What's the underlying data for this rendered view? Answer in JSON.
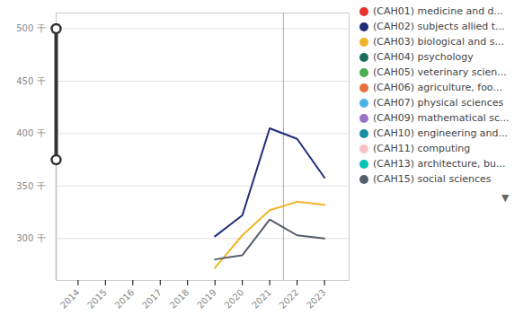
{
  "chart_data": {
    "type": "line",
    "title": "",
    "x": [
      2014,
      2015,
      2016,
      2017,
      2018,
      2019,
      2020,
      2021,
      2022,
      2023
    ],
    "series": [
      {
        "name": "(CAH01) medicine and d...",
        "color": "#e8312a",
        "values": [
          null,
          null,
          null,
          null,
          null,
          null,
          null,
          null,
          null,
          null
        ]
      },
      {
        "name": "(CAH02) subjects allied t...",
        "color": "#1f2d7b",
        "values": [
          null,
          null,
          null,
          null,
          null,
          302,
          322,
          405,
          395,
          358
        ]
      },
      {
        "name": "(CAH03) biological and s...",
        "color": "#f0b429",
        "values": [
          null,
          null,
          null,
          null,
          null,
          272,
          303,
          327,
          335,
          332
        ]
      },
      {
        "name": "(CAH04) psychology",
        "color": "#1a6e5c",
        "values": [
          null,
          null,
          null,
          null,
          null,
          null,
          null,
          null,
          null,
          null
        ]
      },
      {
        "name": "(CAH05) veterinary scien...",
        "color": "#4caf50",
        "values": [
          null,
          null,
          null,
          null,
          null,
          null,
          null,
          null,
          null,
          null
        ]
      },
      {
        "name": "(CAH06) agriculture, foo...",
        "color": "#e87040",
        "values": [
          null,
          null,
          null,
          null,
          null,
          null,
          null,
          null,
          null,
          null
        ]
      },
      {
        "name": "(CAH07) physical sciences",
        "color": "#4db3e6",
        "values": [
          null,
          null,
          null,
          null,
          null,
          null,
          null,
          null,
          null,
          null
        ]
      },
      {
        "name": "(CAH09) mathematical sc...",
        "color": "#9b73c8",
        "values": [
          null,
          null,
          null,
          null,
          null,
          null,
          null,
          null,
          null,
          null
        ]
      },
      {
        "name": "(CAH10) engineering and...",
        "color": "#1a8fa0",
        "values": [
          null,
          null,
          null,
          null,
          null,
          null,
          null,
          null,
          null,
          null
        ]
      },
      {
        "name": "(CAH11) computing",
        "color": "#f4c2c2",
        "values": [
          null,
          null,
          null,
          null,
          null,
          null,
          null,
          null,
          null,
          null
        ]
      },
      {
        "name": "(CAH13) architecture, bu...",
        "color": "#00c4b4",
        "values": [
          null,
          null,
          null,
          null,
          null,
          null,
          null,
          null,
          null,
          null
        ]
      },
      {
        "name": "(CAH15) social sciences",
        "color": "#555e6b",
        "values": [
          null,
          null,
          null,
          null,
          null,
          280,
          284,
          318,
          303,
          300
        ]
      }
    ],
    "xlim": [
      2013.2,
      2023.9
    ],
    "xticks": [
      2014,
      2015,
      2016,
      2017,
      2018,
      2019,
      2020,
      2021,
      2022,
      2023
    ],
    "ylim": [
      260,
      515
    ],
    "yticks": [
      {
        "value": 300,
        "label": "300 千"
      },
      {
        "value": 350,
        "label": "350 千"
      },
      {
        "value": 400,
        "label": "400 千"
      },
      {
        "value": 450,
        "label": "450 千"
      },
      {
        "value": 500,
        "label": "500 千"
      }
    ],
    "grid": true,
    "legend": "right",
    "highlight_x": 2021.5,
    "range_bar": {
      "low": 375,
      "high": 500
    },
    "annotations": [
      "▼"
    ]
  }
}
